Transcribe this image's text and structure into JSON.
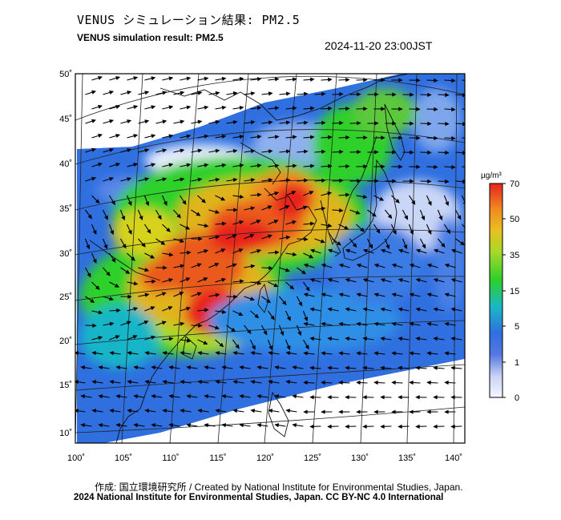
{
  "header": {
    "title_jp": "VENUS シミュレーション結果: PM2.5",
    "title_en": "VENUS simulation result: PM2.5",
    "timestamp": "2024-11-20 23:00JST"
  },
  "axes": {
    "lon_ticks": [
      "100˚",
      "105˚",
      "110˚",
      "115˚",
      "120˚",
      "125˚",
      "130˚",
      "135˚",
      "140˚"
    ],
    "lat_ticks": [
      "50˚",
      "45˚",
      "40˚",
      "35˚",
      "30˚",
      "25˚",
      "20˚",
      "15˚",
      "10˚"
    ]
  },
  "colorbar": {
    "unit": "µg/m³",
    "levels": [
      "70",
      "50",
      "35",
      "15",
      "5",
      "1",
      "0"
    ],
    "colors": [
      "#e8231c",
      "#f08a22",
      "#d7d21a",
      "#2dd02a",
      "#19b6c8",
      "#2f6fe0",
      "#f4f4ff"
    ]
  },
  "footer": {
    "credit": "作成: 国立環境研究所 / Created by National Institute for Environmental Studies, Japan.",
    "copyright": "2024 National Institute for Environmental Studies, Japan. CC BY-NC 4.0 International"
  }
}
